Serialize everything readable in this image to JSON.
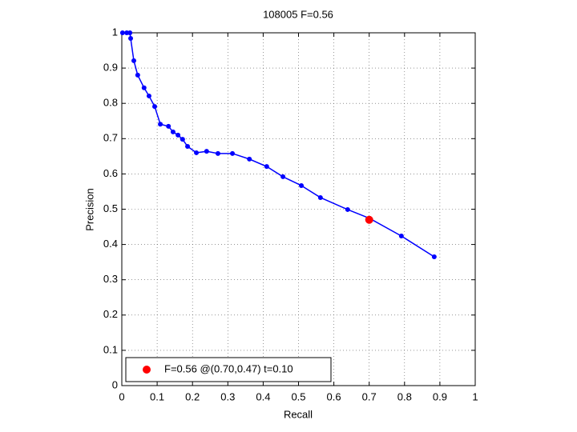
{
  "chart_data": {
    "type": "line",
    "title": "108005 F=0.56",
    "x_label": "Recall",
    "y_label": "Precision",
    "xlim": [
      0,
      1
    ],
    "ylim": [
      0,
      1
    ],
    "xticks": [
      0,
      0.1,
      0.2,
      0.3,
      0.4,
      0.5,
      0.6,
      0.7,
      0.8,
      0.9,
      1
    ],
    "yticks": [
      0,
      0.1,
      0.2,
      0.3,
      0.4,
      0.5,
      0.6,
      0.7,
      0.8,
      0.9,
      1
    ],
    "grid": true,
    "legend": "lower left",
    "series": [
      {
        "type": "line",
        "color": "#0000ff",
        "x": [
          0.002,
          0.014,
          0.023,
          0.025,
          0.034,
          0.045,
          0.063,
          0.077,
          0.093,
          0.109,
          0.132,
          0.145,
          0.159,
          0.172,
          0.186,
          0.211,
          0.24,
          0.272,
          0.313,
          0.361,
          0.41,
          0.456,
          0.508,
          0.562,
          0.639,
          0.701,
          0.791,
          0.884
        ],
        "values": [
          1,
          1,
          1,
          0.984,
          0.921,
          0.88,
          0.844,
          0.821,
          0.791,
          0.741,
          0.735,
          0.719,
          0.71,
          0.698,
          0.678,
          0.66,
          0.664,
          0.658,
          0.658,
          0.642,
          0.621,
          0.592,
          0.567,
          0.533,
          0.499,
          0.474,
          0.424,
          0.365
        ]
      },
      {
        "type": "scatter",
        "name": "F=0.56 @(0.70,0.47) t=0.10",
        "color": "#ff0000",
        "x": [
          0.7
        ],
        "values": [
          0.47
        ]
      }
    ]
  }
}
